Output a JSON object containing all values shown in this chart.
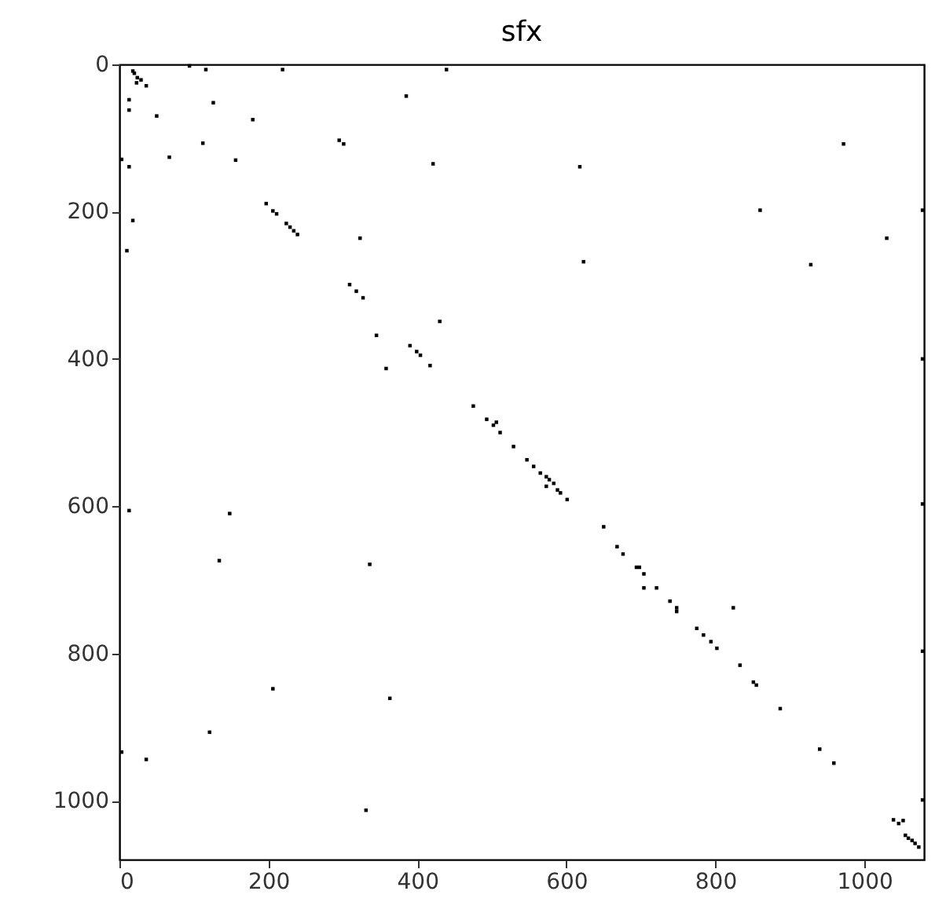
{
  "chart_data": {
    "type": "scatter",
    "title": "sfx",
    "marker": "square",
    "grid": false,
    "xlim": [
      0,
      1080
    ],
    "ylim": [
      1080,
      0
    ],
    "xticks": [
      0,
      200,
      400,
      600,
      800,
      1000
    ],
    "yticks": [
      0,
      200,
      400,
      600,
      800,
      1000
    ],
    "series": [
      {
        "color": "#000000",
        "x": [
          18,
          20,
          24,
          29,
          23,
          36,
          94,
          116,
          219,
          439,
          13,
          13,
          126,
          50,
          385,
          179,
          112,
          295,
          301,
          3,
          13,
          67,
          156,
          421,
          18,
          10,
          197,
          206,
          211,
          224,
          229,
          234,
          239,
          323,
          309,
          318,
          327,
          430,
          972,
          618,
          860,
          1078,
          1030,
          623,
          928,
          345,
          390,
          399,
          404,
          358,
          417,
          475,
          493,
          502,
          506,
          511,
          529,
          13,
          148,
          134,
          336,
          547,
          556,
          565,
          573,
          577,
          583,
          573,
          588,
          592,
          601,
          650,
          668,
          676,
          694,
          698,
          704,
          1078,
          1078,
          3,
          36,
          121,
          206,
          363,
          331,
          704,
          721,
          739,
          748,
          748,
          824,
          775,
          784,
          794,
          802,
          833,
          851,
          855,
          887,
          940,
          959,
          1078,
          1078,
          1039,
          1046,
          1052,
          1055,
          1059,
          1064,
          1068,
          1073
        ],
        "values": [
          9,
          12,
          18,
          21,
          25,
          29,
          2,
          7,
          7,
          7,
          48,
          62,
          52,
          70,
          43,
          75,
          107,
          103,
          108,
          129,
          139,
          126,
          130,
          135,
          212,
          253,
          189,
          199,
          203,
          216,
          221,
          226,
          231,
          236,
          299,
          308,
          317,
          349,
          108,
          139,
          198,
          198,
          236,
          268,
          272,
          368,
          382,
          390,
          395,
          413,
          409,
          464,
          482,
          490,
          486,
          500,
          519,
          606,
          610,
          674,
          679,
          537,
          546,
          555,
          560,
          564,
          569,
          573,
          578,
          582,
          591,
          628,
          655,
          665,
          683,
          683,
          692,
          400,
          597,
          934,
          944,
          907,
          848,
          861,
          1013,
          711,
          711,
          729,
          738,
          743,
          738,
          766,
          775,
          784,
          793,
          816,
          839,
          843,
          875,
          930,
          949,
          797,
          999,
          1026,
          1031,
          1027,
          1047,
          1051,
          1054,
          1058,
          1063
        ]
      }
    ]
  }
}
